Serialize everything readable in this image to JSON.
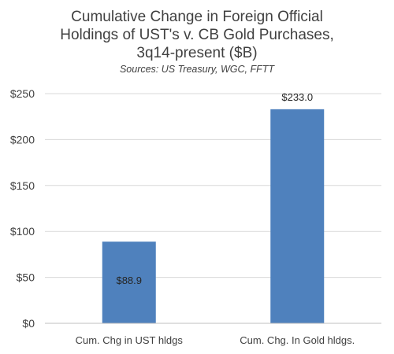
{
  "chart_data": {
    "type": "bar",
    "title_lines": [
      "Cumulative Change in Foreign Official",
      "Holdings of UST's v. CB Gold Purchases,",
      "3q14-present ($B)"
    ],
    "subtitle": "Sources:  US Treasury, WGC, FFTT",
    "categories": [
      "Cum. Chg in UST hldgs",
      "Cum. Chg. In Gold hldgs."
    ],
    "values": [
      88.9,
      233.0
    ],
    "data_labels": [
      "$88.9",
      "$233.0"
    ],
    "y_ticks": [
      0,
      50,
      100,
      150,
      200,
      250
    ],
    "y_tick_labels": [
      "$0",
      "$50",
      "$100",
      "$150",
      "$200",
      "$250"
    ],
    "ylim": [
      0,
      250
    ],
    "xlabel": "",
    "ylabel": "",
    "grid": true,
    "legend": "none",
    "bar_color": "#4f81bd"
  }
}
